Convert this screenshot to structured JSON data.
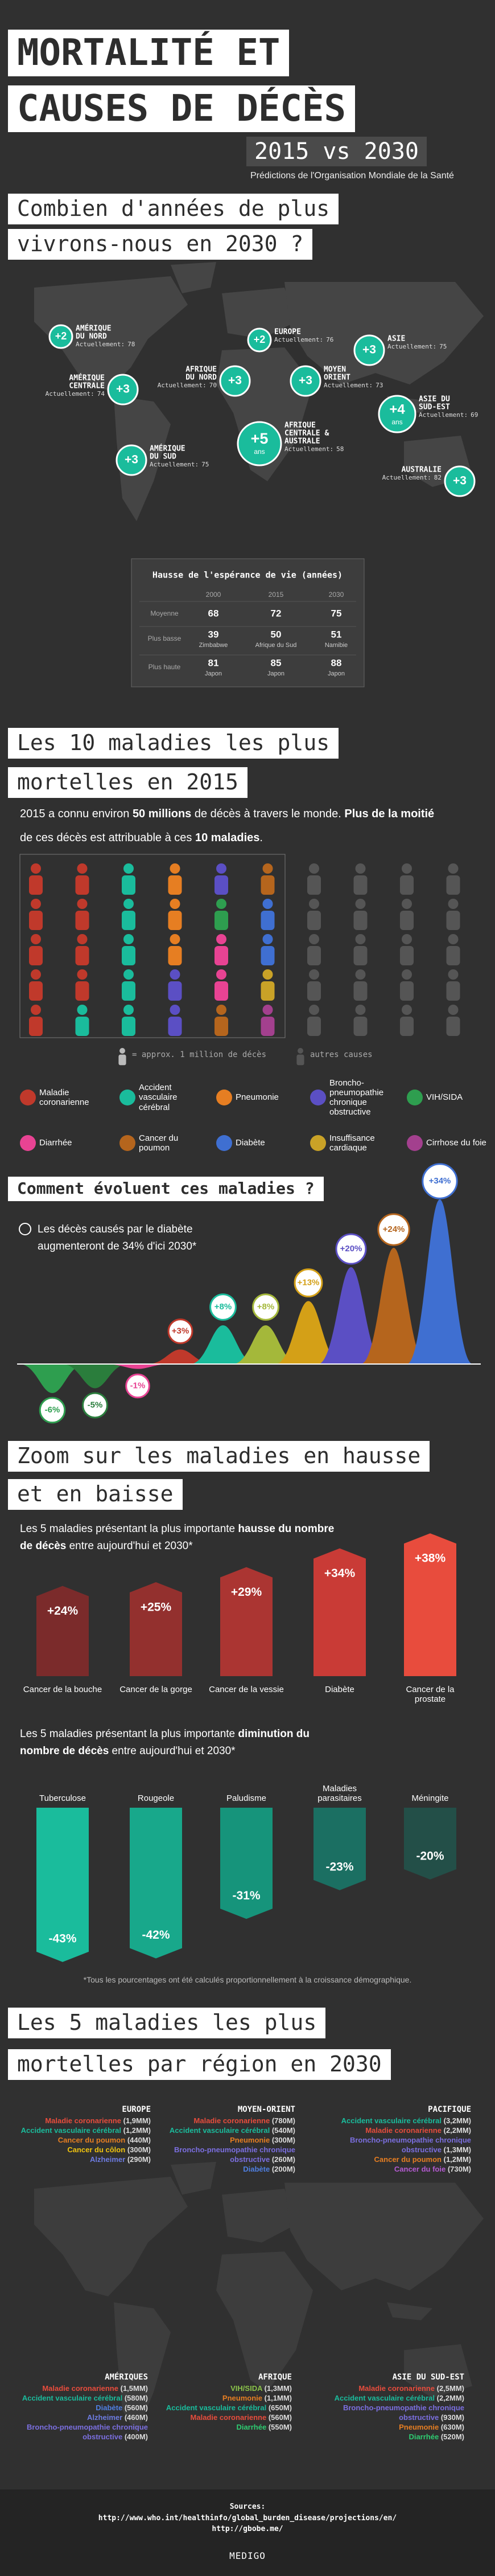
{
  "header": {
    "title_lines": [
      "MORTALITÉ ET",
      "CAUSES DE DÉCÈS"
    ],
    "comparison": "2015 vs 2030",
    "subtitle": "Prédictions de l'Organisation Mondiale de la Santé"
  },
  "life_expectancy": {
    "title_lines": [
      "Combien d'années de plus",
      "vivrons-nous en 2030 ?"
    ],
    "current_label": "Actuellement:",
    "regions": [
      {
        "name_lines": [
          "AMÉRIQUE",
          "DU NORD"
        ],
        "gain": {
          "value": 2,
          "label": "+2"
        },
        "current": 78
      },
      {
        "name_lines": [
          "EUROPE"
        ],
        "gain": {
          "value": 2,
          "label": "+2"
        },
        "current": 76
      },
      {
        "name_lines": [
          "ASIE"
        ],
        "gain": {
          "value": 3,
          "label": "+3"
        },
        "current": 75
      },
      {
        "name_lines": [
          "AMÉRIQUE",
          "CENTRALE"
        ],
        "gain": {
          "value": 3,
          "label": "+3"
        },
        "current": 74
      },
      {
        "name_lines": [
          "AFRIQUE",
          "DU NORD"
        ],
        "gain": {
          "value": 3,
          "label": "+3"
        },
        "current": 70
      },
      {
        "name_lines": [
          "MOYEN",
          "ORIENT"
        ],
        "gain": {
          "value": 3,
          "label": "+3"
        },
        "current": 73
      },
      {
        "name_lines": [
          "ASIE DU",
          "SUD-EST"
        ],
        "gain": {
          "value": 4,
          "label": "+4"
        },
        "unit": "ans",
        "current": 69
      },
      {
        "name_lines": [
          "AFRIQUE",
          "CENTRALE &",
          "AUSTRALE"
        ],
        "gain": {
          "value": 5,
          "label": "+5"
        },
        "unit": "ans",
        "current": 58
      },
      {
        "name_lines": [
          "AMÉRIQUE",
          "DU SUD"
        ],
        "gain": {
          "value": 3,
          "label": "+3"
        },
        "current": 75
      },
      {
        "name_lines": [
          "AUSTRALIE"
        ],
        "gain": {
          "value": 3,
          "label": "+3"
        },
        "current": 82
      }
    ],
    "table": {
      "title": "Hausse de l'espérance de vie (années)",
      "columns": [
        "2000",
        "2015",
        "2030"
      ],
      "rows": [
        {
          "label": "Moyenne",
          "cells": [
            {
              "value": 68
            },
            {
              "value": 72
            },
            {
              "value": 75
            }
          ]
        },
        {
          "label": "Plus basse",
          "cells": [
            {
              "value": 39,
              "place": "Zimbabwe"
            },
            {
              "value": 50,
              "place": "Afrique du Sud"
            },
            {
              "value": 51,
              "place": "Namibie"
            }
          ]
        },
        {
          "label": "Plus haute",
          "cells": [
            {
              "value": 81,
              "place": "Japon"
            },
            {
              "value": 85,
              "place": "Japon"
            },
            {
              "value": 88,
              "place": "Japon"
            }
          ]
        }
      ]
    }
  },
  "top10": {
    "title_lines": [
      "Les 10 maladies les plus",
      "mortelles en 2015"
    ],
    "intro": [
      [
        {
          "text": "2015 a connu environ "
        },
        {
          "text": "50 millions",
          "bold": true
        },
        {
          "text": " de décès à travers le monde. "
        },
        {
          "text": "Plus de la moitié",
          "bold": true
        }
      ],
      [
        {
          "text": "de ces décès est attribuable à "
        },
        {
          "text": "ces "
        },
        {
          "text": "10 maladies",
          "bold": true
        },
        {
          "text": "."
        }
      ]
    ],
    "diseases": [
      {
        "name": "Maladie coronarienne",
        "color": "#c0392b",
        "icons": 9
      },
      {
        "name": "Accident vasculaire cérébral",
        "color": "#1abc9c",
        "icons": 6
      },
      {
        "name": "Pneumonie",
        "color": "#e67e22",
        "icons": 3
      },
      {
        "name": "Broncho-pneumopathie chronique obstructive",
        "color": "#5b4fc4",
        "icons": 3
      },
      {
        "name": "VIH/SIDA",
        "color": "#2e9e4f",
        "icons": 1
      },
      {
        "name": "Diarrhée",
        "color": "#e84393",
        "icons": 2
      },
      {
        "name": "Cancer du poumon",
        "color": "#b5651d",
        "icons": 2
      },
      {
        "name": "Diabète",
        "color": "#3f6fd1",
        "icons": 2
      },
      {
        "name": "Insuffisance cardiaque",
        "color": "#c9a227",
        "icons": 1
      },
      {
        "name": "Cirrhose du foie",
        "color": "#a3408e",
        "icons": 1
      }
    ],
    "other_icons": 20,
    "other_color": "#555555",
    "legend_unit": "= approx. 1 million de décès",
    "legend_other": "autres causes"
  },
  "chart_data": [
    {
      "type": "area",
      "title": "Comment évoluent ces maladies ?",
      "note": "Les décès causés par le diabète augmenteront de 34% d'ici 2030*",
      "values": [
        -6,
        -5,
        -1,
        3,
        8,
        8,
        13,
        20,
        24,
        34
      ],
      "value_labels": [
        "-6%",
        "-5%",
        "-1%",
        "+3%",
        "+8%",
        "+8%",
        "+13%",
        "+20%",
        "+24%",
        "+34%"
      ],
      "colors": [
        "#2e9e4f",
        "#2a7d3c",
        "#e84393",
        "#c0392b",
        "#1abc9c",
        "#a4b83a",
        "#d4a017",
        "#5b4fc4",
        "#b5651d",
        "#3f6fd1"
      ]
    },
    {
      "type": "bar",
      "text": [
        {
          "text": "Les 5 maladies présentant la plus importante "
        },
        {
          "text": "hausse",
          "bold": true
        },
        {
          "text": " du nombre de décès",
          "bold": true
        },
        {
          "text": " entre aujourd'hui et 2030*"
        }
      ],
      "categories": [
        "Cancer de la bouche",
        "Cancer de la gorge",
        "Cancer de la vessie",
        "Diabète",
        "Cancer de la prostate"
      ],
      "values": [
        24,
        25,
        29,
        34,
        38
      ],
      "value_labels": [
        "+24%",
        "+25%",
        "+29%",
        "+34%",
        "+38%"
      ],
      "colors": [
        "#7b2b2b",
        "#93302e",
        "#ab3532",
        "#c93b36",
        "#e84c3d"
      ]
    },
    {
      "type": "bar",
      "text": [
        {
          "text": "Les 5 maladies présentant la plus importante "
        },
        {
          "text": "diminution",
          "bold": true
        },
        {
          "text": " du nombre de décès",
          "bold": true
        },
        {
          "text": " entre aujourd'hui et 2030*"
        }
      ],
      "categories": [
        "Tuberculose",
        "Rougeole",
        "Paludisme",
        "Maladies parasitaires",
        "Méningite"
      ],
      "values": [
        -43,
        -42,
        -31,
        -23,
        -20
      ],
      "value_labels": [
        "-43%",
        "-42%",
        "-31%",
        "-23%",
        "-20%"
      ],
      "colors": [
        "#1abc9c",
        "#18a88b",
        "#16947b",
        "#1b6f62",
        "#234f48"
      ],
      "footnote": "*Tous les pourcentages ont été calculés proportionnellement à la croissance démographique."
    }
  ],
  "zoom": {
    "title_lines": [
      "Zoom sur les maladies en hausse",
      "et en baisse"
    ]
  },
  "regions_2030": {
    "title_lines": [
      "Les 5 maladies les plus",
      "mortelles par région en 2030"
    ],
    "regions": [
      {
        "name": "EUROPE",
        "items": [
          {
            "name": "Maladie coronarienne",
            "value": "(1,9MM)",
            "color": "#e74c3c"
          },
          {
            "name": "Accident vasculaire cérébral",
            "value": "(1,2MM)",
            "color": "#1abc9c"
          },
          {
            "name": "Cancer du poumon",
            "value": "(440M)",
            "color": "#e67e22"
          },
          {
            "name": "Cancer du côlon",
            "value": "(300M)",
            "color": "#f1c40f"
          },
          {
            "name": "Alzheimer",
            "value": "(290M)",
            "color": "#6c7be0"
          }
        ]
      },
      {
        "name": "MOYEN-ORIENT",
        "items": [
          {
            "name": "Maladie coronarienne",
            "value": "(780M)",
            "color": "#e74c3c"
          },
          {
            "name": "Accident vasculaire cérébral",
            "value": "(540M)",
            "color": "#1abc9c"
          },
          {
            "name": "Pneumonie",
            "value": "(300M)",
            "color": "#e67e22"
          },
          {
            "name": "Broncho-pneumopathie chronique obstructive",
            "value": "(260M)",
            "color": "#7b6fe0"
          },
          {
            "name": "Diabète",
            "value": "(200M)",
            "color": "#4f7fe1"
          }
        ]
      },
      {
        "name": "PACIFIQUE",
        "items": [
          {
            "name": "Accident vasculaire cérébral",
            "value": "(3,2MM)",
            "color": "#1abc9c"
          },
          {
            "name": "Maladie coronarienne",
            "value": "(2,2MM)",
            "color": "#e74c3c"
          },
          {
            "name": "Broncho-pneumopathie chronique obstructive",
            "value": "(1,3MM)",
            "color": "#7b6fe0"
          },
          {
            "name": "Cancer du poumon",
            "value": "(1,2MM)",
            "color": "#e67e22"
          },
          {
            "name": "Cancer du foie",
            "value": "(730M)",
            "color": "#b45bd1"
          }
        ]
      },
      {
        "name": "AMÉRIQUES",
        "items": [
          {
            "name": "Maladie coronarienne",
            "value": "(1,5MM)",
            "color": "#e74c3c"
          },
          {
            "name": "Accident vasculaire cérébral",
            "value": "(580M)",
            "color": "#1abc9c"
          },
          {
            "name": "Diabète",
            "value": "(560M)",
            "color": "#4f7fe1"
          },
          {
            "name": "Alzheimer",
            "value": "(460M)",
            "color": "#6c7be0"
          },
          {
            "name": "Broncho-pneumopathie chronique obstructive",
            "value": "(400M)",
            "color": "#7b6fe0"
          }
        ]
      },
      {
        "name": "AFRIQUE",
        "items": [
          {
            "name": "VIH/SIDA",
            "value": "(1,3MM)",
            "color": "#8bc34a"
          },
          {
            "name": "Pneumonie",
            "value": "(1,1MM)",
            "color": "#e67e22"
          },
          {
            "name": "Accident vasculaire cérébral",
            "value": "(650M)",
            "color": "#1abc9c"
          },
          {
            "name": "Maladie coronarienne",
            "value": "(560M)",
            "color": "#e74c3c"
          },
          {
            "name": "Diarrhée",
            "value": "(550M)",
            "color": "#2ecc71"
          }
        ]
      },
      {
        "name": "ASIE DU SUD-EST",
        "items": [
          {
            "name": "Maladie coronarienne",
            "value": "(2,5MM)",
            "color": "#e74c3c"
          },
          {
            "name": "Accident vasculaire cérébral",
            "value": "(2,2MM)",
            "color": "#1abc9c"
          },
          {
            "name": "Broncho-pneumopathie chronique obstructive",
            "value": "(930M)",
            "color": "#7b6fe0"
          },
          {
            "name": "Pneumonie",
            "value": "(630M)",
            "color": "#e67e22"
          },
          {
            "name": "Diarrhée",
            "value": "(520M)",
            "color": "#2ecc71"
          }
        ]
      }
    ]
  },
  "sources": {
    "label": "Sources:",
    "urls": [
      "http://www.who.int/healthinfo/global_burden_disease/projections/en/",
      "http://gbobe.me/"
    ]
  },
  "footer": "MEDIGO"
}
